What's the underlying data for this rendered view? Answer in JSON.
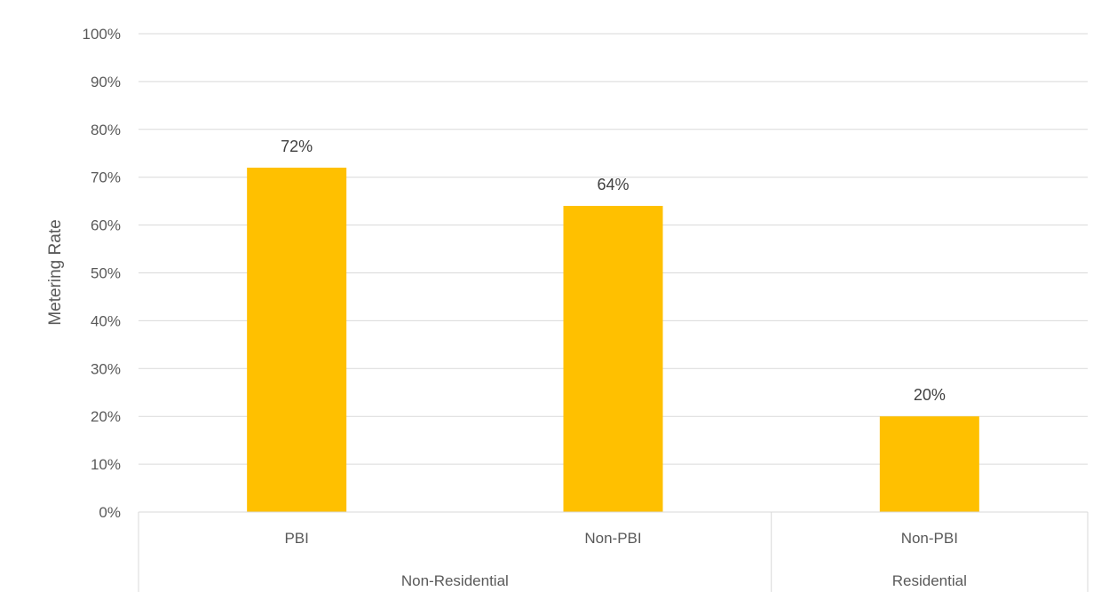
{
  "chart_data": {
    "type": "bar",
    "categories": [
      "PBI",
      "Non-PBI",
      "Non-PBI"
    ],
    "groups": [
      {
        "label": "Non-Residential",
        "categories": [
          "PBI",
          "Non-PBI"
        ]
      },
      {
        "label": "Residential",
        "categories": [
          "Non-PBI"
        ]
      }
    ],
    "values": [
      0.72,
      0.64,
      0.2
    ],
    "data_labels": [
      "72%",
      "64%",
      "20%"
    ],
    "ylabel": "Metering Rate",
    "ylim": [
      0,
      1
    ],
    "y_ticks": [
      "0%",
      "10%",
      "20%",
      "30%",
      "40%",
      "50%",
      "60%",
      "70%",
      "80%",
      "90%",
      "100%"
    ],
    "grid": true,
    "legend": false,
    "bar_color": "#FFC000"
  }
}
